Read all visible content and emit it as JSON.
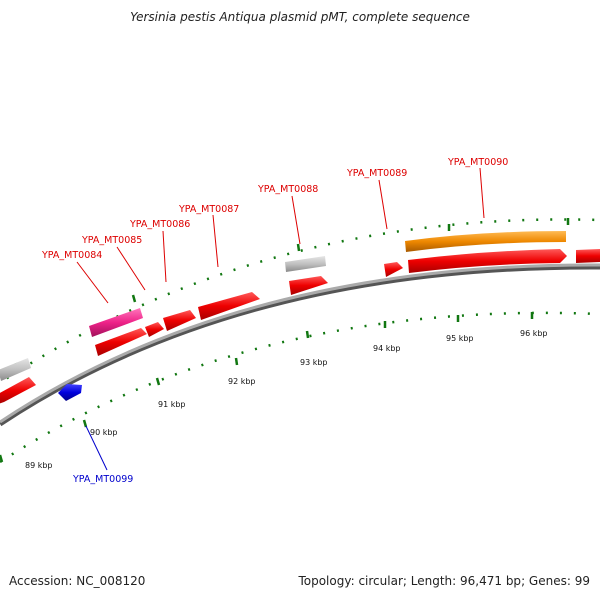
{
  "title": "Yersinia pestis Antiqua plasmid pMT, complete sequence",
  "footer": {
    "accession_label": "Accession:",
    "accession": "NC_008120",
    "topology_label": "Topology:",
    "topology": "circular",
    "length_label": "Length:",
    "length": "96,471 bp",
    "genes_label": "Genes:",
    "genes": "99"
  },
  "scale": {
    "ticks": [
      {
        "label": "89 kbp",
        "kbp": 89
      },
      {
        "label": "90 kbp",
        "kbp": 90
      },
      {
        "label": "91 kbp",
        "kbp": 91
      },
      {
        "label": "92 kbp",
        "kbp": 92
      },
      {
        "label": "93 kbp",
        "kbp": 93
      },
      {
        "label": "94 kbp",
        "kbp": 94
      },
      {
        "label": "95 kbp",
        "kbp": 95
      },
      {
        "label": "96 kbp",
        "kbp": 96
      }
    ]
  },
  "gene_labels": [
    {
      "label": "YPA_MT0084",
      "color": "#dd0000"
    },
    {
      "label": "YPA_MT0085",
      "color": "#dd0000"
    },
    {
      "label": "YPA_MT0086",
      "color": "#dd0000"
    },
    {
      "label": "YPA_MT0087",
      "color": "#dd0000"
    },
    {
      "label": "YPA_MT0088",
      "color": "#dd0000"
    },
    {
      "label": "YPA_MT0089",
      "color": "#dd0000"
    },
    {
      "label": "YPA_MT0090",
      "color": "#dd0000"
    },
    {
      "label": "YPA_MT0099",
      "color": "#0000cc"
    }
  ],
  "colors": {
    "cds_forward": "#ee0000",
    "pink_feature": "#ee2288",
    "gray_feature": "#bbbbbb",
    "orange_feature": "#ee8800",
    "cds_reverse": "#0000dd",
    "backbone": "#888888",
    "tick_green": "#117711"
  }
}
